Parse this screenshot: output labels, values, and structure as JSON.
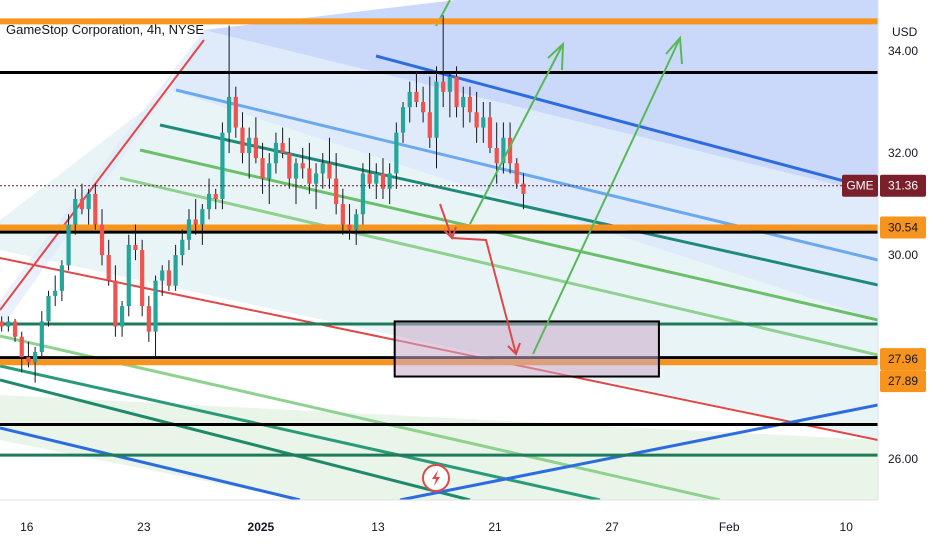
{
  "chart_data": {
    "type": "candlestick",
    "title": "GameStop Corporation, 4h, NYSE",
    "symbol": "GME",
    "currency": "USD",
    "ylim": [
      25.2,
      35.0
    ],
    "y_ticks": [
      {
        "value": 34.0,
        "label": "34.00"
      },
      {
        "value": 32.0,
        "label": "32.00"
      },
      {
        "value": 30.0,
        "label": "30.00"
      },
      {
        "value": 26.0,
        "label": "26.00"
      }
    ],
    "x_ticks": [
      {
        "value": 0,
        "label": "16",
        "bold": false
      },
      {
        "value": 7,
        "label": "23",
        "bold": false
      },
      {
        "value": 14,
        "label": "2025",
        "bold": true
      },
      {
        "value": 21,
        "label": "13",
        "bold": false
      },
      {
        "value": 28,
        "label": "21",
        "bold": false
      },
      {
        "value": 35,
        "label": "27",
        "bold": false
      },
      {
        "value": 42,
        "label": "Feb",
        "bold": false
      },
      {
        "value": 49,
        "label": "10",
        "bold": false
      }
    ],
    "xlim": [
      -1.6,
      50.9
    ],
    "price_tags": [
      {
        "label": "GME",
        "value_label": "31.36",
        "value": 31.36,
        "color": "#7b1f2b",
        "text_color": "#ffffff"
      },
      {
        "label": "",
        "value_label": "30.54",
        "value": 30.54,
        "color": "#f7941d",
        "text_color": "#131722"
      },
      {
        "label": "",
        "value_label": "27.96",
        "value": 27.96,
        "color": "#f7941d",
        "text_color": "#131722"
      },
      {
        "label": "",
        "value_label": "27.89",
        "value": 27.89,
        "color": "#f7941d",
        "text_color": "#131722"
      }
    ],
    "last_price": 31.36,
    "horizontal_levels": [
      {
        "value": 34.58,
        "color": "#f7941d"
      },
      {
        "value": 33.58,
        "color": "#000000"
      },
      {
        "value": 30.54,
        "color": "#f7941d"
      },
      {
        "value": 30.45,
        "color": "#000000"
      },
      {
        "value": 28.65,
        "color": "#1f7a5a"
      },
      {
        "value": 27.99,
        "color": "#000000"
      },
      {
        "value": 27.9,
        "color": "#f7941d"
      },
      {
        "value": 26.68,
        "color": "#000000"
      },
      {
        "value": 26.08,
        "color": "#1f7a5a"
      }
    ],
    "zone_box": {
      "x0": 22.0,
      "x1": 37.8,
      "y0": 27.62,
      "y1": 28.7
    },
    "colors": {
      "up": "#26a69a",
      "down": "#ef5350",
      "wick": "#131722"
    },
    "candles": [
      [
        -1.5,
        28.7,
        28.8,
        28.5,
        28.6
      ],
      [
        -1.1,
        28.6,
        28.8,
        28.5,
        28.7
      ],
      [
        -0.7,
        28.7,
        28.75,
        28.3,
        28.4
      ],
      [
        -0.3,
        28.4,
        28.5,
        27.7,
        28.0
      ],
      [
        0.1,
        28.0,
        28.3,
        27.8,
        27.9
      ],
      [
        0.5,
        27.9,
        28.2,
        27.5,
        28.1
      ],
      [
        0.9,
        28.1,
        28.9,
        28.0,
        28.7
      ],
      [
        1.3,
        28.7,
        29.3,
        28.6,
        29.2
      ],
      [
        1.7,
        29.2,
        29.6,
        29.0,
        29.3
      ],
      [
        2.1,
        29.3,
        29.9,
        29.1,
        29.8
      ],
      [
        2.5,
        29.8,
        30.8,
        29.7,
        30.6
      ],
      [
        2.9,
        30.6,
        31.3,
        30.4,
        31.1
      ],
      [
        3.3,
        31.1,
        31.4,
        30.8,
        30.9
      ],
      [
        3.7,
        30.9,
        31.3,
        30.6,
        31.2
      ],
      [
        4.1,
        31.2,
        31.4,
        30.5,
        30.6
      ],
      [
        4.5,
        30.6,
        30.9,
        29.8,
        30.0
      ],
      [
        4.9,
        30.0,
        30.3,
        29.4,
        29.5
      ],
      [
        5.3,
        29.5,
        29.8,
        28.4,
        28.6
      ],
      [
        5.7,
        28.6,
        29.1,
        28.4,
        29.0
      ],
      [
        6.1,
        29.0,
        30.4,
        28.8,
        30.2
      ],
      [
        6.5,
        30.2,
        30.6,
        29.9,
        30.1
      ],
      [
        6.9,
        30.1,
        30.3,
        28.8,
        29.0
      ],
      [
        7.3,
        29.0,
        29.2,
        28.3,
        28.5
      ],
      [
        7.7,
        28.5,
        29.6,
        28.0,
        29.5
      ],
      [
        8.1,
        29.5,
        29.8,
        29.2,
        29.7
      ],
      [
        8.5,
        29.7,
        29.9,
        29.3,
        29.4
      ],
      [
        8.9,
        29.4,
        30.2,
        29.3,
        30.0
      ],
      [
        9.3,
        30.0,
        30.5,
        29.8,
        30.3
      ],
      [
        9.7,
        30.3,
        30.9,
        30.1,
        30.7
      ],
      [
        10.1,
        30.7,
        31.1,
        30.4,
        30.6
      ],
      [
        10.5,
        30.6,
        31.0,
        30.2,
        30.9
      ],
      [
        10.9,
        30.9,
        31.5,
        30.7,
        31.2
      ],
      [
        11.3,
        31.2,
        31.3,
        30.9,
        31.1
      ],
      [
        11.7,
        31.1,
        32.6,
        30.9,
        32.4
      ],
      [
        12.1,
        32.4,
        34.5,
        32.0,
        33.1
      ],
      [
        12.5,
        33.1,
        33.3,
        32.3,
        32.5
      ],
      [
        12.9,
        32.5,
        32.8,
        31.8,
        32.0
      ],
      [
        13.3,
        32.0,
        32.5,
        31.5,
        32.3
      ],
      [
        13.7,
        32.3,
        32.7,
        31.8,
        31.9
      ],
      [
        14.1,
        31.9,
        32.2,
        31.2,
        31.5
      ],
      [
        14.5,
        31.5,
        32.0,
        31.0,
        31.8
      ],
      [
        14.9,
        31.8,
        32.4,
        31.6,
        32.2
      ],
      [
        15.3,
        32.2,
        32.5,
        31.9,
        32.0
      ],
      [
        15.7,
        32.0,
        32.3,
        31.3,
        31.5
      ],
      [
        16.1,
        31.5,
        31.9,
        31.0,
        31.8
      ],
      [
        16.5,
        31.8,
        32.1,
        31.5,
        31.7
      ],
      [
        16.9,
        31.7,
        32.2,
        31.2,
        31.4
      ],
      [
        17.3,
        31.4,
        31.8,
        30.9,
        31.6
      ],
      [
        17.7,
        31.6,
        32.0,
        31.3,
        31.8
      ],
      [
        18.1,
        31.8,
        32.3,
        31.3,
        31.5
      ],
      [
        18.5,
        31.5,
        32.0,
        30.8,
        31.0
      ],
      [
        18.9,
        31.0,
        31.3,
        30.4,
        30.6
      ],
      [
        19.3,
        30.6,
        31.0,
        30.3,
        30.5
      ],
      [
        19.7,
        30.5,
        30.9,
        30.2,
        30.8
      ],
      [
        20.1,
        30.8,
        31.8,
        30.6,
        31.6
      ],
      [
        20.5,
        31.6,
        32.0,
        31.3,
        31.4
      ],
      [
        20.9,
        31.4,
        31.8,
        31.1,
        31.6
      ],
      [
        21.3,
        31.6,
        31.9,
        31.1,
        31.3
      ],
      [
        21.7,
        31.3,
        31.8,
        31.0,
        31.6
      ],
      [
        22.1,
        31.6,
        32.6,
        31.3,
        32.4
      ],
      [
        22.5,
        32.4,
        33.0,
        32.2,
        32.9
      ],
      [
        22.9,
        32.9,
        33.4,
        32.6,
        33.2
      ],
      [
        23.3,
        33.2,
        33.6,
        32.9,
        33.0
      ],
      [
        23.7,
        33.0,
        33.3,
        32.6,
        32.8
      ],
      [
        24.1,
        32.8,
        33.5,
        32.1,
        32.3
      ],
      [
        24.5,
        32.3,
        33.7,
        31.7,
        33.4
      ],
      [
        24.9,
        33.4,
        34.7,
        32.9,
        33.2
      ],
      [
        25.3,
        33.2,
        33.6,
        32.7,
        33.5
      ],
      [
        25.7,
        33.5,
        33.7,
        32.7,
        32.9
      ],
      [
        26.1,
        32.9,
        33.3,
        32.5,
        33.1
      ],
      [
        26.5,
        33.1,
        33.3,
        32.6,
        32.8
      ],
      [
        26.9,
        32.8,
        33.2,
        32.2,
        32.5
      ],
      [
        27.3,
        32.5,
        33.0,
        32.2,
        32.7
      ],
      [
        27.7,
        32.7,
        33.0,
        32.0,
        32.1
      ],
      [
        28.1,
        32.1,
        32.6,
        31.4,
        31.8
      ],
      [
        28.5,
        31.8,
        32.6,
        31.6,
        32.3
      ],
      [
        28.9,
        32.3,
        32.6,
        31.6,
        31.8
      ],
      [
        29.3,
        31.8,
        31.9,
        31.3,
        31.4
      ],
      [
        29.7,
        31.4,
        31.6,
        30.9,
        31.2
      ]
    ]
  }
}
